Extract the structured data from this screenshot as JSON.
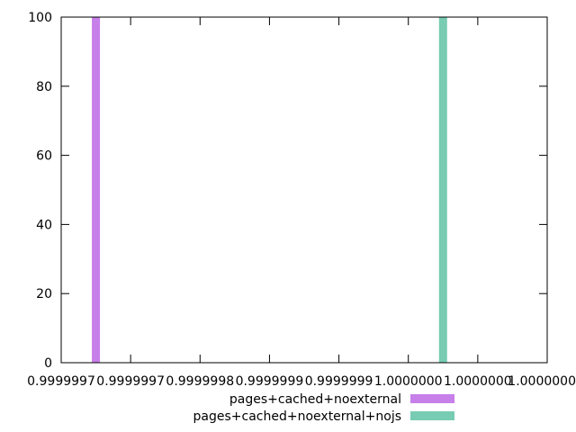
{
  "chart_data": {
    "type": "bar",
    "title": "",
    "xlabel": "",
    "ylabel": "",
    "x_ticks": [
      "0.9999997",
      "0.9999997",
      "0.9999998",
      "0.9999999",
      "0.9999999",
      "1.0000000",
      "1.0000000",
      "1.0000000"
    ],
    "x_tick_values": [
      0.99999965,
      0.99999975,
      0.99999985,
      0.99999995,
      1.00000005,
      1.00000015,
      1.00000025,
      1.00000035
    ],
    "xlim": [
      0.99999965,
      1.00000035
    ],
    "y_ticks": [
      "0",
      "20",
      "40",
      "60",
      "80",
      "100"
    ],
    "y_tick_values": [
      0,
      20,
      40,
      60,
      80,
      100
    ],
    "ylim": [
      0,
      100
    ],
    "grid": false,
    "legend_position": "bottom",
    "series": [
      {
        "name": "pages+cached+noexternal",
        "color": "#c77fe9",
        "x": [
          0.9999997
        ],
        "values": [
          100
        ]
      },
      {
        "name": "pages+cached+noexternal+nojs",
        "color": "#77ccb2",
        "x": [
          1.0000002
        ],
        "values": [
          100
        ]
      }
    ]
  }
}
